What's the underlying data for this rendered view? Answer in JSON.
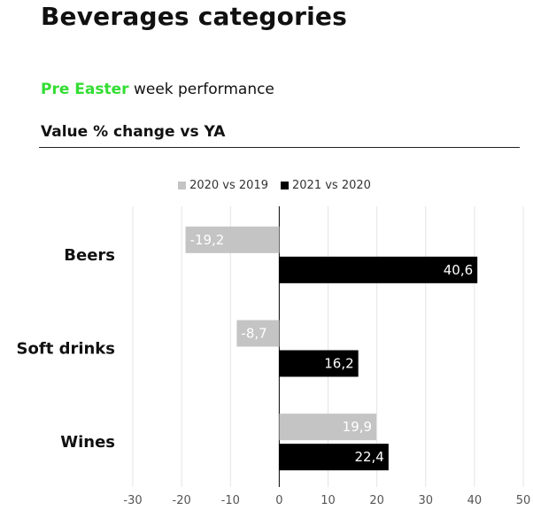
{
  "header": {
    "title": "Beverages categories",
    "subtitle_accent": "Pre Easter",
    "subtitle_rest": " week performance",
    "section_title": "Value % change vs YA"
  },
  "colors": {
    "accent": "#33dd33",
    "series_2020_vs_2019": "#c4c4c4",
    "series_2021_vs_2020": "#000000"
  },
  "chart_data": {
    "type": "bar",
    "orientation": "horizontal",
    "categories": [
      "Beers",
      "Soft drinks",
      "Wines"
    ],
    "series": [
      {
        "name": "2020 vs 2019",
        "values": [
          -19.2,
          -8.7,
          19.9
        ],
        "labels": [
          "-19,2",
          "-8,7",
          "19,9"
        ],
        "color": "#c4c4c4",
        "label_color": "#ffffff"
      },
      {
        "name": "2021 vs 2020",
        "values": [
          40.6,
          16.2,
          22.4
        ],
        "labels": [
          "40,6",
          "16,2",
          "22,4"
        ],
        "color": "#000000",
        "label_color": "#ffffff"
      }
    ],
    "x_ticks": [
      -30,
      -20,
      -10,
      0,
      10,
      20,
      30,
      40,
      50
    ],
    "x_tick_labels": [
      "-30",
      "-20",
      "-10",
      "0",
      "10",
      "20",
      "30",
      "40",
      "50"
    ],
    "xlim": [
      -30,
      50
    ],
    "grid": true,
    "legend_position": "top-center",
    "title": "Value % change vs YA"
  }
}
